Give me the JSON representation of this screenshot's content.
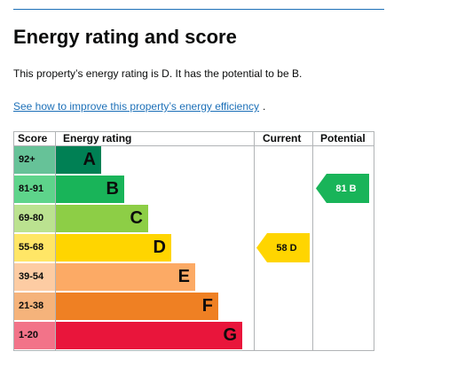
{
  "title": "Energy rating and score",
  "summary": "This property’s energy rating is D. It has the potential to be B.",
  "improve_link": "See how to improve this property’s energy efficiency",
  "improve_period": ".",
  "table": {
    "headers": {
      "score": "Score",
      "rating": "Energy rating",
      "current": "Current",
      "potential": "Potential"
    },
    "bands": [
      {
        "score": "92+",
        "letter": "A",
        "color": "#008054"
      },
      {
        "score": "81-91",
        "letter": "B",
        "color": "#19b459"
      },
      {
        "score": "69-80",
        "letter": "C",
        "color": "#8dce46"
      },
      {
        "score": "55-68",
        "letter": "D",
        "color": "#ffd500"
      },
      {
        "score": "39-54",
        "letter": "E",
        "color": "#fcaa65"
      },
      {
        "score": "21-38",
        "letter": "F",
        "color": "#ef8023"
      },
      {
        "score": "1-20",
        "letter": "G",
        "color": "#e9153b"
      }
    ],
    "current": {
      "value": "58",
      "letter": "D",
      "label": "58 D",
      "color": "#ffd500"
    },
    "potential": {
      "value": "81",
      "letter": "B",
      "label": "81 B",
      "color": "#19b459"
    }
  }
}
